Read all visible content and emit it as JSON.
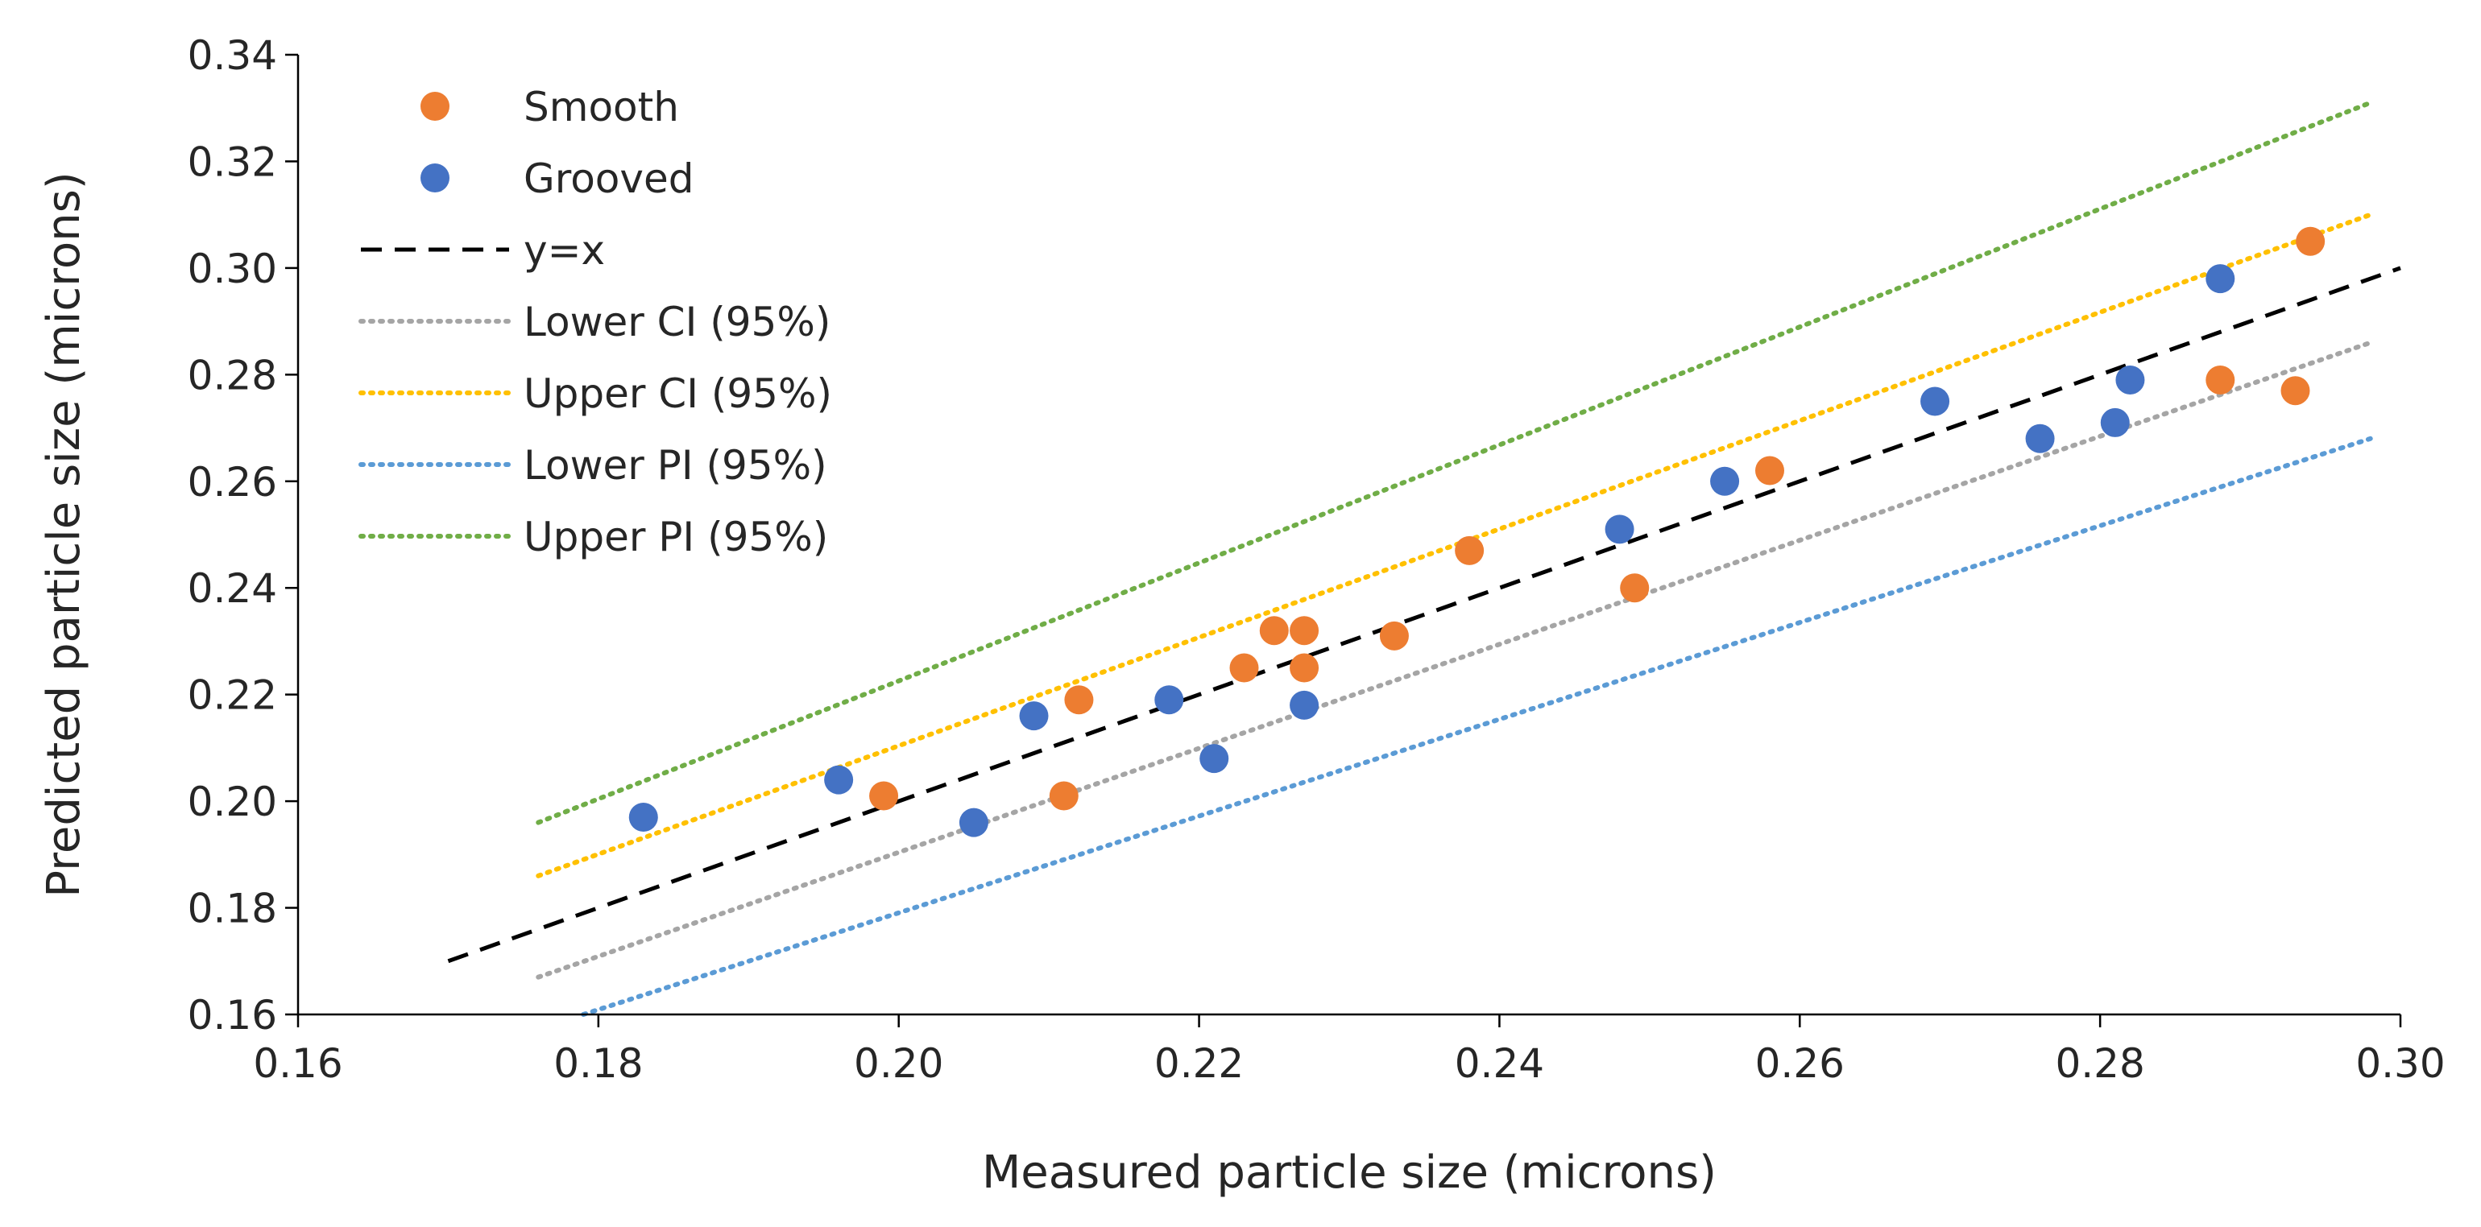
{
  "chart_data": {
    "type": "scatter",
    "title": "",
    "xlabel": "Measured particle size (microns)",
    "ylabel": "Predicted particle size (microns)",
    "xlim": [
      0.16,
      0.3
    ],
    "ylim": [
      0.16,
      0.34
    ],
    "xticks": [
      0.16,
      0.18,
      0.2,
      0.22,
      0.24,
      0.26,
      0.28,
      0.3
    ],
    "yticks": [
      0.16,
      0.18,
      0.2,
      0.22,
      0.24,
      0.26,
      0.28,
      0.3,
      0.32,
      0.34
    ],
    "xtick_labels": [
      "0.16",
      "0.18",
      "0.20",
      "0.22",
      "0.24",
      "0.26",
      "0.28",
      "0.30"
    ],
    "ytick_labels": [
      "0.16",
      "0.18",
      "0.20",
      "0.22",
      "0.24",
      "0.26",
      "0.28",
      "0.30",
      "0.32",
      "0.34"
    ],
    "grid": false,
    "legend_position": "top-left",
    "series": [
      {
        "name": "Smooth",
        "kind": "scatter",
        "color": "#ED7D31",
        "points": [
          [
            0.199,
            0.201
          ],
          [
            0.211,
            0.201
          ],
          [
            0.212,
            0.219
          ],
          [
            0.223,
            0.225
          ],
          [
            0.225,
            0.232
          ],
          [
            0.227,
            0.232
          ],
          [
            0.227,
            0.225
          ],
          [
            0.233,
            0.231
          ],
          [
            0.238,
            0.247
          ],
          [
            0.249,
            0.24
          ],
          [
            0.258,
            0.262
          ],
          [
            0.288,
            0.279
          ],
          [
            0.293,
            0.277
          ],
          [
            0.294,
            0.305
          ]
        ]
      },
      {
        "name": "Grooved",
        "kind": "scatter",
        "color": "#4472C4",
        "points": [
          [
            0.183,
            0.197
          ],
          [
            0.196,
            0.204
          ],
          [
            0.205,
            0.196
          ],
          [
            0.209,
            0.216
          ],
          [
            0.218,
            0.219
          ],
          [
            0.221,
            0.208
          ],
          [
            0.227,
            0.218
          ],
          [
            0.248,
            0.251
          ],
          [
            0.255,
            0.26
          ],
          [
            0.269,
            0.275
          ],
          [
            0.276,
            0.268
          ],
          [
            0.281,
            0.271
          ],
          [
            0.282,
            0.279
          ],
          [
            0.288,
            0.298
          ]
        ]
      },
      {
        "name": "y=x",
        "kind": "line",
        "style": "dashed",
        "color": "#000000",
        "points": [
          [
            0.17,
            0.17
          ],
          [
            0.3,
            0.3
          ]
        ]
      },
      {
        "name": "Lower CI (95%)",
        "kind": "line",
        "style": "dotted",
        "color": "#A5A5A5",
        "points": [
          [
            0.176,
            0.167
          ],
          [
            0.298,
            0.286
          ]
        ]
      },
      {
        "name": "Upper CI (95%)",
        "kind": "line",
        "style": "dotted",
        "color": "#FFC000",
        "points": [
          [
            0.176,
            0.186
          ],
          [
            0.298,
            0.31
          ]
        ]
      },
      {
        "name": "Lower PI (95%)",
        "kind": "line",
        "style": "dotted",
        "color": "#5B9BD5",
        "points": [
          [
            0.179,
            0.16
          ],
          [
            0.298,
            0.268
          ]
        ]
      },
      {
        "name": "Upper PI (95%)",
        "kind": "line",
        "style": "dotted",
        "color": "#70AD47",
        "points": [
          [
            0.176,
            0.196
          ],
          [
            0.298,
            0.331
          ]
        ]
      }
    ]
  }
}
